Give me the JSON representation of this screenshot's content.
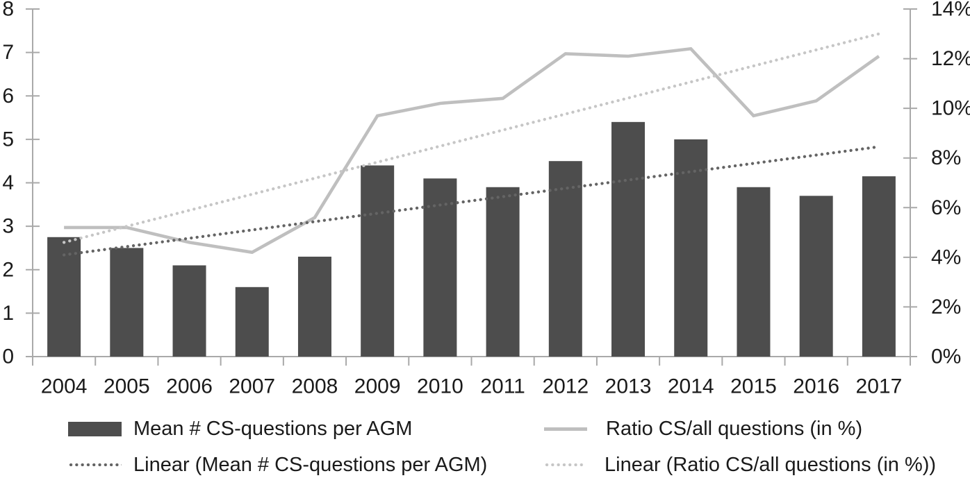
{
  "chart_data": {
    "type": "combo-bar-line",
    "title": "",
    "categories": [
      "2004",
      "2005",
      "2006",
      "2007",
      "2008",
      "2009",
      "2010",
      "2011",
      "2012",
      "2013",
      "2014",
      "2015",
      "2016",
      "2017"
    ],
    "series": [
      {
        "name": "Mean # CS-questions per AGM",
        "type": "bar",
        "axis": "left",
        "color": "#4d4d4d",
        "values": [
          2.75,
          2.5,
          2.1,
          1.6,
          2.3,
          4.4,
          4.1,
          3.9,
          4.5,
          5.4,
          5.0,
          3.9,
          3.7,
          4.15
        ]
      },
      {
        "name": "Ratio CS/all questions (in %)",
        "type": "line",
        "axis": "right",
        "color": "#bfbfbf",
        "values": [
          5.2,
          5.2,
          4.6,
          4.2,
          5.6,
          9.7,
          10.2,
          10.4,
          12.2,
          12.1,
          12.4,
          9.7,
          10.3,
          12.1
        ]
      },
      {
        "name": "Linear (Mean # CS-questions per AGM)",
        "type": "trendline",
        "axis": "left",
        "style": "dotted",
        "color": "#646464",
        "endpoints": [
          2.34,
          4.83
        ]
      },
      {
        "name": "Linear (Ratio CS/all questions (in %))",
        "type": "trendline",
        "axis": "right",
        "style": "dotted",
        "color": "#c6c6c6",
        "endpoints": [
          4.6,
          13.0
        ]
      }
    ],
    "left_axis": {
      "min": 0,
      "max": 8,
      "tick_step": 1,
      "tick_labels": [
        "0",
        "1",
        "2",
        "3",
        "4",
        "5",
        "6",
        "7",
        "8"
      ]
    },
    "right_axis": {
      "min": 0,
      "max": 14,
      "tick_step": 2,
      "tick_labels": [
        "0%",
        "2%",
        "4%",
        "6%",
        "8%",
        "10%",
        "12%",
        "14%"
      ]
    },
    "grid": false,
    "legend_position": "bottom"
  },
  "legend": {
    "items": [
      {
        "label": "Mean # CS-questions per AGM",
        "swatch": "bar"
      },
      {
        "label": "Ratio CS/all questions (in %)",
        "swatch": "solid-line"
      },
      {
        "label": "Linear (Mean # CS-questions per AGM)",
        "swatch": "dotted-line"
      },
      {
        "label": "Linear (Ratio CS/all questions (in %))",
        "swatch": "dotted-line"
      }
    ]
  },
  "colors": {
    "bar": "#4d4d4d",
    "ratio_line": "#bfbfbf",
    "mean_trend": "#646464",
    "ratio_trend": "#c6c6c6",
    "axis": "#a9a9a9",
    "text": "#1a1a1a",
    "background": "#ffffff"
  }
}
